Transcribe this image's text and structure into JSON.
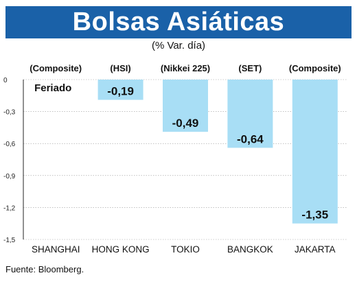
{
  "header": {
    "title": "Bolsas Asiáticas",
    "subtitle": "(% Var. día)"
  },
  "footer": {
    "source": "Fuente: Bloomberg."
  },
  "colors": {
    "title_bg": "#1a61a8",
    "bar": "#a8def5",
    "grid": "#9a9a9a"
  },
  "chart_data": {
    "type": "bar",
    "categories": [
      "SHANGHAI",
      "HONG KONG",
      "TOKIO",
      "BANGKOK",
      "JAKARTA"
    ],
    "index_names": [
      "(Composite)",
      "(HSI)",
      "(Nikkei 225)",
      "(SET)",
      "(Composite)"
    ],
    "values": [
      null,
      -0.19,
      -0.49,
      -0.64,
      -1.35
    ],
    "value_labels": [
      "Feriado",
      "-0,19",
      "-0,49",
      "-0,64",
      "-1,35"
    ],
    "ylim": [
      -1.5,
      0
    ],
    "yticks": [
      0,
      -0.3,
      -0.6,
      -0.9,
      -1.2,
      -1.5
    ],
    "ytick_labels": [
      "0",
      "-0,3",
      "-0,6",
      "-0,9",
      "-1,2",
      "-1,5"
    ],
    "grid": true
  }
}
